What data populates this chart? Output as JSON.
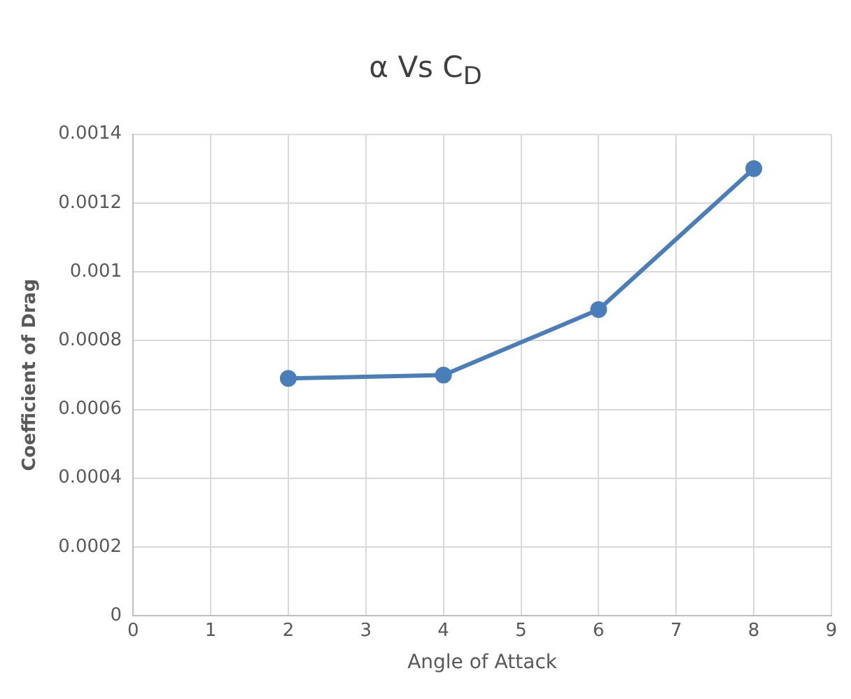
{
  "chart_data": {
    "type": "line",
    "title": "α Vs C$_{D}$",
    "xlabel": "Angle of Attack",
    "ylabel": "Coefficient of Drag",
    "x": [
      2,
      4,
      6,
      8
    ],
    "series": [
      {
        "color": "#4a7ebb",
        "values": [
          0.00069,
          0.0007,
          0.00089,
          0.0013
        ]
      }
    ],
    "xlim": [
      0,
      9
    ],
    "xticks": [
      0,
      1,
      2,
      3,
      4,
      5,
      6,
      7,
      8,
      9
    ],
    "ylim": [
      0,
      0.0014
    ],
    "yticks": [
      0,
      0.0002,
      0.0004,
      0.0006,
      0.0008,
      0.001,
      0.0012,
      0.0014
    ],
    "grid": true,
    "legend": false,
    "marker": "circle",
    "line_style": "solid"
  }
}
